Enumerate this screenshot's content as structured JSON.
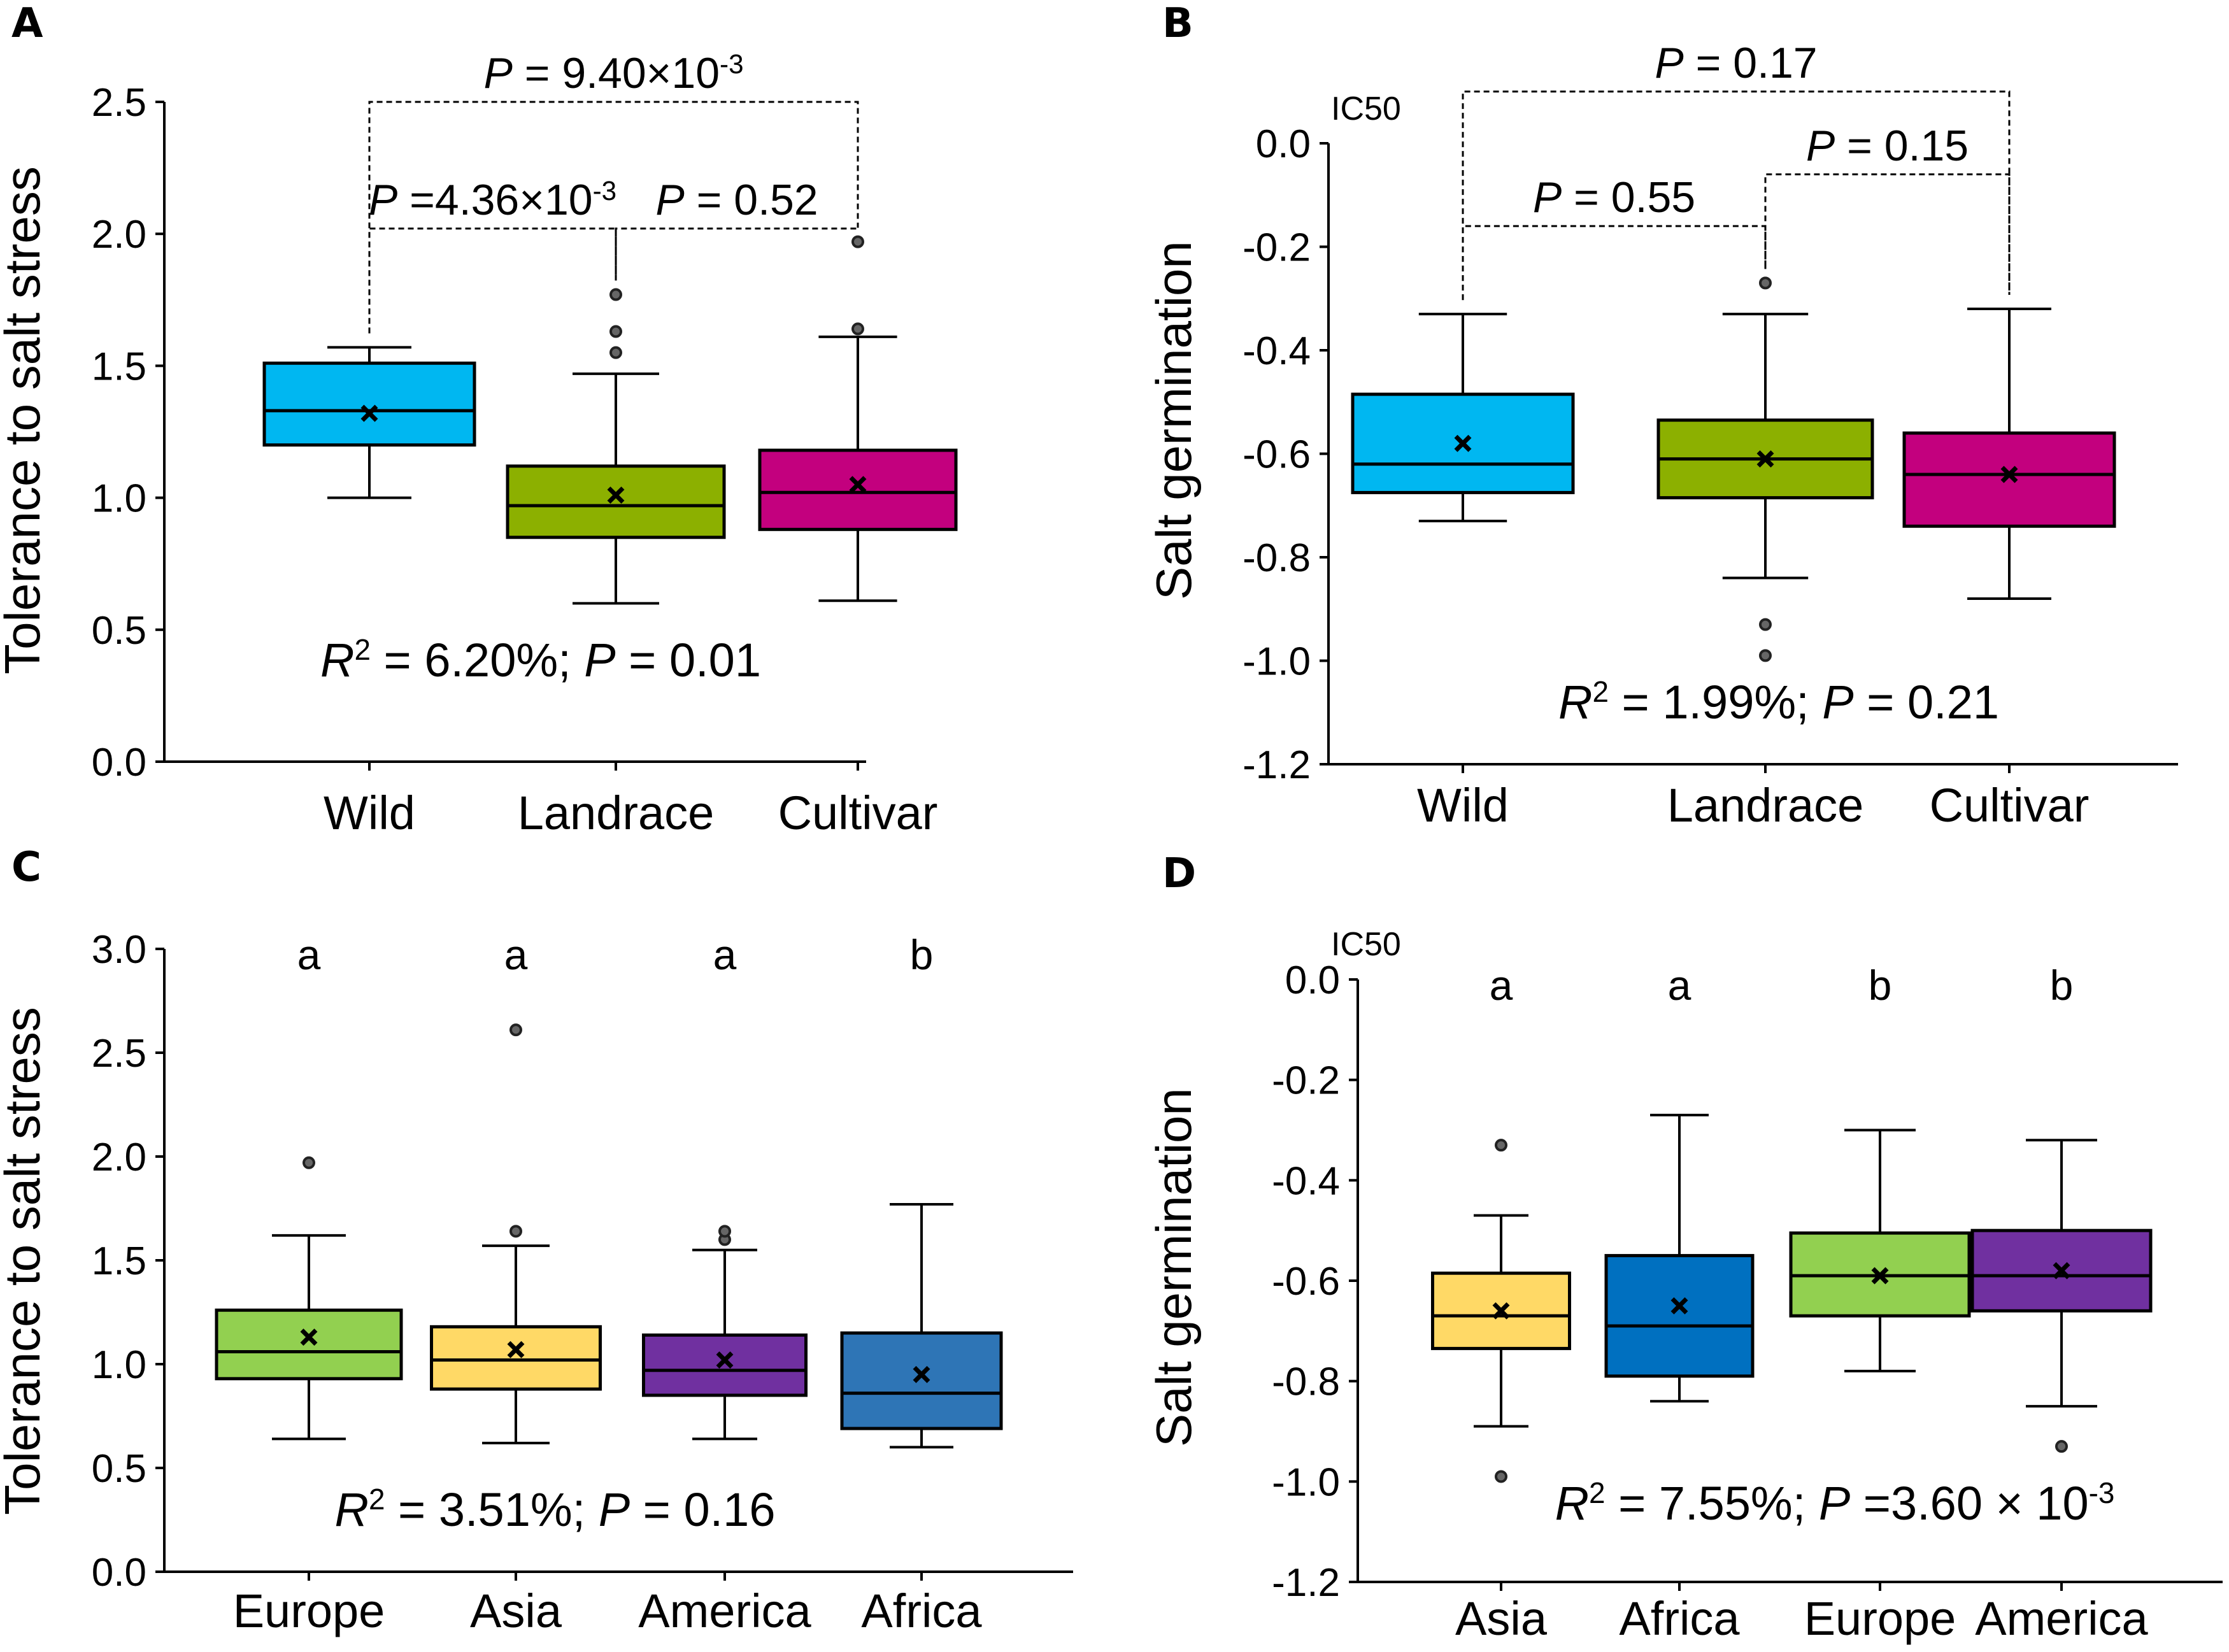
{
  "chart_data": [
    {
      "panel": "A",
      "type": "box",
      "ylabel": "Tolerance to salt stress",
      "ylim": [
        0,
        2.5
      ],
      "yticks": [
        0.0,
        0.5,
        1.0,
        1.5,
        2.0,
        2.5
      ],
      "ytick_labels": [
        "0.0",
        "0.5",
        "1.0",
        "1.5",
        "2.0",
        "2.5"
      ],
      "categories": [
        "Wild",
        "Landrace",
        "Cultivar"
      ],
      "boxes": [
        {
          "name": "Wild",
          "color": "#00b7f1",
          "whisker_low": 1.0,
          "q1": 1.2,
          "median": 1.33,
          "q3": 1.51,
          "whisker_high": 1.57,
          "mean": 1.32,
          "outliers": []
        },
        {
          "name": "Landrace",
          "color": "#8cb000",
          "whisker_low": 0.6,
          "q1": 0.85,
          "median": 0.97,
          "q3": 1.12,
          "whisker_high": 1.47,
          "mean": 1.01,
          "outliers": [
            1.55,
            1.63,
            1.77
          ]
        },
        {
          "name": "Cultivar",
          "color": "#c3007e",
          "whisker_low": 0.61,
          "q1": 0.88,
          "median": 1.02,
          "q3": 1.18,
          "whisker_high": 1.61,
          "mean": 1.05,
          "outliers": [
            1.64,
            1.97
          ]
        }
      ],
      "comparisons": [
        {
          "from": 0,
          "to": 1,
          "level": 2.02,
          "label_parts": [
            "P",
            " =4.36×10",
            "-3"
          ]
        },
        {
          "from": 1,
          "to": 2,
          "level": 2.02,
          "label_parts": [
            "P",
            " = 0.52",
            ""
          ]
        },
        {
          "from": 0,
          "to": 2,
          "level": 2.5,
          "label_parts": [
            "P",
            " = 9.40×10",
            "-3"
          ]
        }
      ],
      "stat_parts": [
        "R",
        "2",
        " = 6.20%; ",
        "P",
        " = 0.01",
        ""
      ]
    },
    {
      "panel": "B",
      "type": "box",
      "ylabel": "Salt germination",
      "unit_label": "IC50",
      "ylim": [
        -1.2,
        0
      ],
      "yticks": [
        0.0,
        -0.2,
        -0.4,
        -0.6,
        -0.8,
        -1.0,
        -1.2
      ],
      "ytick_labels": [
        "0.0",
        "-0.2",
        "-0.4",
        "-0.6",
        "-0.8",
        "-1.0",
        "-1.2"
      ],
      "categories": [
        "Wild",
        "Landrace",
        "Cultivar"
      ],
      "boxes": [
        {
          "name": "Wild",
          "color": "#00b7f1",
          "whisker_low": -0.73,
          "q1": -0.675,
          "median": -0.62,
          "q3": -0.485,
          "whisker_high": -0.33,
          "mean": -0.58,
          "outliers": []
        },
        {
          "name": "Landrace",
          "color": "#8cb000",
          "whisker_low": -0.84,
          "q1": -0.685,
          "median": -0.61,
          "q3": -0.535,
          "whisker_high": -0.33,
          "mean": -0.61,
          "outliers": [
            -0.27,
            -0.93,
            -0.99
          ]
        },
        {
          "name": "Cultivar",
          "color": "#c3007e",
          "whisker_low": -0.88,
          "q1": -0.74,
          "median": -0.64,
          "q3": -0.56,
          "whisker_high": -0.32,
          "mean": -0.64,
          "outliers": []
        }
      ],
      "comparisons": [
        {
          "from": 0,
          "to": 1,
          "level": -0.16,
          "label_parts": [
            "P",
            " = 0.55",
            ""
          ]
        },
        {
          "from": 1,
          "to": 2,
          "level": -0.06,
          "label_parts": [
            "P",
            " = 0.15",
            ""
          ]
        },
        {
          "from": 0,
          "to": 2,
          "level": 0.1,
          "label_parts": [
            "P",
            " = 0.17",
            ""
          ]
        }
      ],
      "stat_parts": [
        "R",
        "2",
        " = 1.99%; ",
        "P",
        " = 0.21",
        ""
      ]
    },
    {
      "panel": "C",
      "type": "box",
      "ylabel": "Tolerance to salt stress",
      "ylim": [
        0,
        3.0
      ],
      "yticks": [
        0.0,
        0.5,
        1.0,
        1.5,
        2.0,
        2.5,
        3.0
      ],
      "ytick_labels": [
        "0.0",
        "0.5",
        "1.0",
        "1.5",
        "2.0",
        "2.5",
        "3.0"
      ],
      "categories": [
        "Europe",
        "Asia",
        "America",
        "Africa"
      ],
      "group_letters": [
        "a",
        "a",
        "a",
        "b"
      ],
      "boxes": [
        {
          "name": "Europe",
          "color": "#92d050",
          "whisker_low": 0.64,
          "q1": 0.93,
          "median": 1.06,
          "q3": 1.26,
          "whisker_high": 1.62,
          "mean": 1.13,
          "outliers": [
            1.97
          ]
        },
        {
          "name": "Asia",
          "color": "#ffd966",
          "whisker_low": 0.62,
          "q1": 0.88,
          "median": 1.02,
          "q3": 1.18,
          "whisker_high": 1.57,
          "mean": 1.07,
          "outliers": [
            1.64,
            2.61
          ]
        },
        {
          "name": "America",
          "color": "#7030a0",
          "whisker_low": 0.64,
          "q1": 0.85,
          "median": 0.97,
          "q3": 1.14,
          "whisker_high": 1.55,
          "mean": 1.02,
          "outliers": [
            1.6,
            1.64
          ]
        },
        {
          "name": "Africa",
          "color": "#2e75b6",
          "whisker_low": 0.6,
          "q1": 0.69,
          "median": 0.86,
          "q3": 1.15,
          "whisker_high": 1.77,
          "mean": 0.95,
          "outliers": []
        }
      ],
      "stat_parts": [
        "R",
        "2",
        " = 3.51%; ",
        "P",
        " = 0.16",
        ""
      ]
    },
    {
      "panel": "D",
      "type": "box",
      "ylabel": "Salt germination",
      "unit_label": "IC50",
      "ylim": [
        -1.2,
        0
      ],
      "yticks": [
        0.0,
        -0.2,
        -0.4,
        -0.6,
        -0.8,
        -1.0,
        -1.2
      ],
      "ytick_labels": [
        "0.0",
        "-0.2",
        "-0.4",
        "-0.6",
        "-0.8",
        "-1.0",
        "-1.2"
      ],
      "categories": [
        "Asia",
        "Africa",
        "Europe",
        "America"
      ],
      "group_letters": [
        "a",
        "a",
        "b",
        "b"
      ],
      "boxes": [
        {
          "name": "Asia",
          "color": "#ffd966",
          "whisker_low": -0.89,
          "q1": -0.735,
          "median": -0.67,
          "q3": -0.585,
          "whisker_high": -0.47,
          "mean": -0.66,
          "outliers": [
            -0.33,
            -0.99
          ]
        },
        {
          "name": "Africa",
          "color": "#0070c0",
          "whisker_low": -0.84,
          "q1": -0.79,
          "median": -0.69,
          "q3": -0.55,
          "whisker_high": -0.27,
          "mean": -0.65,
          "outliers": []
        },
        {
          "name": "Europe",
          "color": "#92d050",
          "whisker_low": -0.78,
          "q1": -0.67,
          "median": -0.59,
          "q3": -0.505,
          "whisker_high": -0.3,
          "mean": -0.59,
          "outliers": []
        },
        {
          "name": "America",
          "color": "#7030a0",
          "whisker_low": -0.85,
          "q1": -0.66,
          "median": -0.59,
          "q3": -0.5,
          "whisker_high": -0.32,
          "mean": -0.58,
          "outliers": [
            -0.93
          ]
        }
      ],
      "stat_parts": [
        "R",
        "2",
        " = 7.55%; ",
        "P",
        " =3.60 × 10",
        "-3"
      ]
    }
  ]
}
